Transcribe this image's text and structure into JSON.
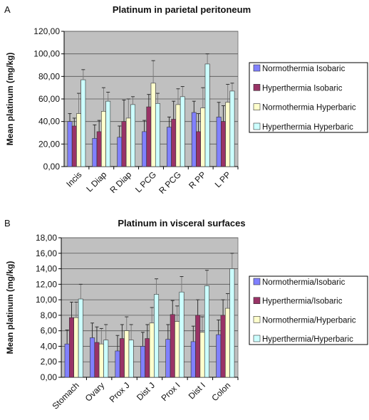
{
  "chart_data": [
    {
      "type": "bar",
      "panel": "A",
      "title": "Platinum in parietal peritoneum",
      "xlabel": "",
      "ylabel": "Mean platinum (mg/kg)",
      "ylim": [
        0,
        120
      ],
      "yticks": [
        "0,00",
        "20,00",
        "40,00",
        "60,00",
        "80,00",
        "100,00",
        "120,00"
      ],
      "ytick_values": [
        0,
        20,
        40,
        60,
        80,
        100,
        120
      ],
      "grid": true,
      "legend_position": "right",
      "categories": [
        "Incis",
        "L Diap",
        "R Diap",
        "L PCG",
        "R PCG",
        "R PP",
        "L PP"
      ],
      "series": [
        {
          "name": "Normothermia Isobaric",
          "color": "#8080ff",
          "values": [
            40,
            25,
            26,
            31,
            35,
            48,
            44
          ],
          "errors": [
            7,
            12,
            10,
            10,
            9,
            10,
            13
          ]
        },
        {
          "name": "Hyperthermia Isobaric",
          "color": "#993366",
          "values": [
            36,
            31,
            40,
            53,
            42,
            31,
            40
          ],
          "errors": [
            7,
            10,
            19,
            11,
            16,
            16,
            14
          ]
        },
        {
          "name": "Normothermia Hyperbaric",
          "color": "#ffffcc",
          "values": [
            47,
            49,
            43,
            74,
            55,
            52,
            57
          ],
          "errors": [
            18,
            21,
            17,
            20,
            14,
            18,
            16
          ]
        },
        {
          "name": "Hyperthermia Hyperbaric",
          "color": "#ccffff",
          "values": [
            77,
            58,
            55,
            56,
            62,
            91,
            67
          ],
          "errors": [
            9,
            8,
            7,
            9,
            9,
            9,
            7
          ]
        }
      ]
    },
    {
      "type": "bar",
      "panel": "B",
      "title": "Platinum in visceral surfaces",
      "xlabel": "",
      "ylabel": "Mean platinum (mg/kg)",
      "ylim": [
        0,
        18
      ],
      "yticks": [
        "0,00",
        "2,00",
        "4,00",
        "6,00",
        "8,00",
        "10,00",
        "12,00",
        "14,00",
        "16,00",
        "18,00"
      ],
      "ytick_values": [
        0,
        2,
        4,
        6,
        8,
        10,
        12,
        14,
        16,
        18
      ],
      "grid": true,
      "legend_position": "right",
      "categories": [
        "Stomach",
        "Ovary",
        "Prox J",
        "Dist J",
        "Prox I",
        "Dist I",
        "Colon"
      ],
      "series": [
        {
          "name": "Normothermia/Isobaric",
          "color": "#8080ff",
          "values": [
            4.3,
            5.1,
            3.4,
            4.0,
            4.9,
            4.6,
            5.5
          ],
          "errors": [
            1.8,
            1.9,
            2.0,
            1.8,
            1.9,
            2.0,
            1.9
          ]
        },
        {
          "name": "Hyperthermia/Isobaric",
          "color": "#993366",
          "values": [
            7.7,
            4.5,
            5.0,
            5.0,
            8.1,
            8.0,
            8.0
          ],
          "errors": [
            2.0,
            2.0,
            1.8,
            1.8,
            1.8,
            2.0,
            2.0
          ]
        },
        {
          "name": "Normothermia/Hyperbaric",
          "color": "#ffffcc",
          "values": [
            7.7,
            4.3,
            6.0,
            7.0,
            7.2,
            5.8,
            8.9
          ],
          "errors": [
            2.0,
            2.0,
            1.8,
            2.0,
            2.0,
            2.0,
            1.9
          ]
        },
        {
          "name": "Hyperthermia/Hyperbaric",
          "color": "#ccffff",
          "values": [
            10.1,
            4.8,
            4.8,
            10.7,
            11.0,
            11.8,
            14.0
          ],
          "errors": [
            1.9,
            2.0,
            2.0,
            2.0,
            2.0,
            2.0,
            2.0
          ]
        }
      ]
    }
  ]
}
